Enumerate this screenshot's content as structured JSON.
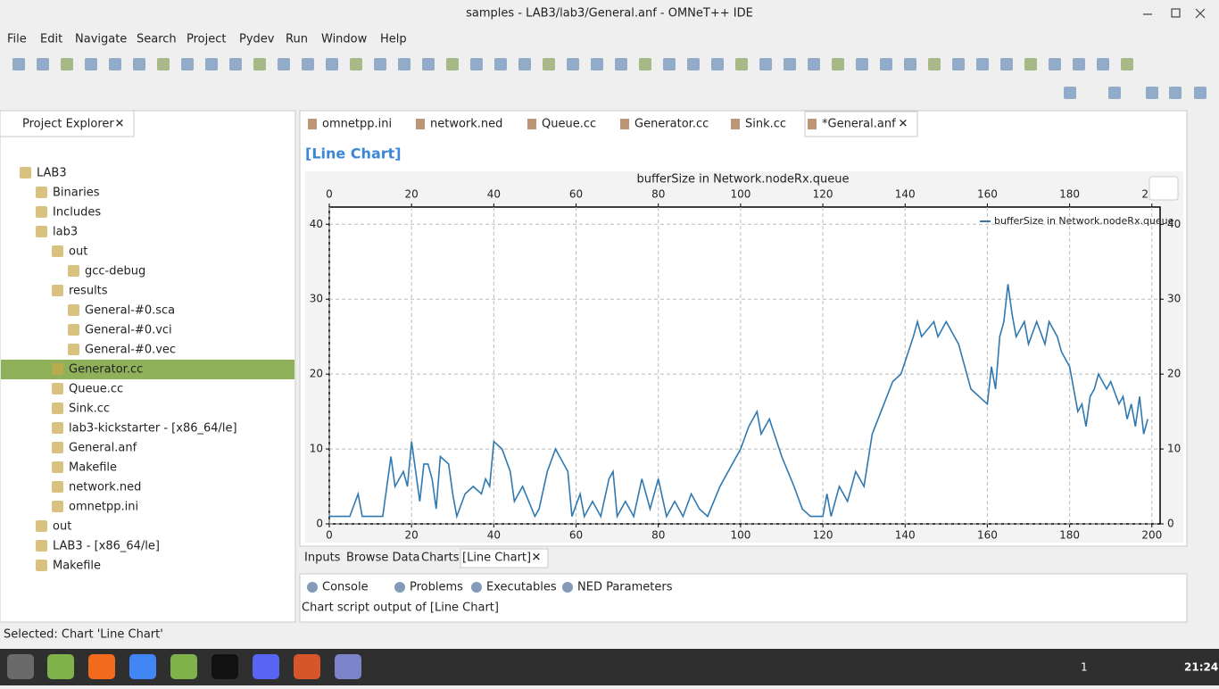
{
  "window": {
    "title": "samples - LAB3/lab3/General.anf - OMNeT++ IDE"
  },
  "menu": [
    "File",
    "Edit",
    "Navigate",
    "Search",
    "Project",
    "Pydev",
    "Run",
    "Window",
    "Help"
  ],
  "project_explorer": {
    "tab": "Project Explorer",
    "tree": [
      "LAB3",
      "Binaries",
      "Includes",
      "lab3",
      "out",
      "gcc-debug",
      "results",
      "General-#0.sca",
      "General-#0.vci",
      "General-#0.vec",
      "Generator.cc",
      "Queue.cc",
      "Sink.cc",
      "lab3-kickstarter - [x86_64/le]",
      "General.anf",
      "Makefile",
      "network.ned",
      "omnetpp.ini",
      "out",
      "LAB3 - [x86_64/le]",
      "Makefile"
    ]
  },
  "editor_tabs": [
    "omnetpp.ini",
    "network.ned",
    "Queue.cc",
    "Generator.cc",
    "Sink.cc",
    "*General.anf"
  ],
  "chart_view_title": "[Line Chart]",
  "chart_data": {
    "type": "line",
    "title": "bufferSize in Network.nodeRx.queue",
    "x": [
      0,
      5,
      7,
      8,
      13,
      15,
      16,
      18,
      19,
      20,
      22,
      23,
      24,
      25,
      26,
      27,
      29,
      30,
      31,
      33,
      35,
      37,
      38,
      39,
      40,
      42,
      44,
      45,
      47,
      50,
      51,
      53,
      55,
      57,
      58,
      59,
      61,
      62,
      64,
      66,
      68,
      69,
      70,
      72,
      74,
      76,
      78,
      80,
      82,
      84,
      86,
      88,
      90,
      92,
      95,
      100,
      102,
      104,
      105,
      107,
      110,
      113,
      115,
      117,
      120,
      121,
      122,
      124,
      126,
      128,
      130,
      132,
      137,
      139,
      142,
      143,
      144,
      147,
      148,
      150,
      153,
      155,
      156,
      158,
      160,
      161,
      162,
      163,
      164,
      165,
      166,
      167,
      169,
      170,
      172,
      174,
      175,
      177,
      178,
      180,
      182,
      183,
      184,
      185,
      186,
      187,
      189,
      190,
      192,
      193,
      194,
      195,
      196,
      197,
      198,
      199
    ],
    "series": [
      {
        "name": "bufferSize in Network.nodeRx.queue",
        "color": "#2f78b0",
        "values": [
          1,
          1,
          4,
          1,
          1,
          9,
          5,
          7,
          5,
          11,
          3,
          8,
          8,
          6,
          2,
          9,
          8,
          4,
          1,
          4,
          5,
          4,
          6,
          5,
          11,
          10,
          7,
          3,
          5,
          1,
          2,
          7,
          10,
          8,
          7,
          1,
          4,
          1,
          3,
          1,
          6,
          7,
          1,
          3,
          1,
          6,
          2,
          6,
          1,
          3,
          1,
          4,
          2,
          1,
          5,
          10,
          13,
          15,
          12,
          14,
          9,
          5,
          2,
          1,
          1,
          4,
          1,
          5,
          3,
          7,
          5,
          12,
          19,
          20,
          25,
          27,
          25,
          27,
          25,
          27,
          24,
          20,
          18,
          17,
          16,
          21,
          18,
          25,
          27,
          32,
          28,
          25,
          27,
          24,
          27,
          24,
          27,
          25,
          23,
          21,
          15,
          16,
          13,
          17,
          18,
          20,
          18,
          19,
          16,
          17,
          14,
          16,
          13,
          17,
          12,
          14
        ]
      }
    ],
    "xlim": [
      0,
      202
    ],
    "ylim": [
      0,
      42.3
    ],
    "xticks": [
      0,
      20,
      40,
      60,
      80,
      100,
      120,
      140,
      160,
      180,
      200
    ],
    "yticks": [
      0,
      10,
      20,
      30,
      40
    ],
    "grid": true,
    "legend": "upper right"
  },
  "bottom_tabs": [
    "Inputs",
    "Browse Data",
    "Charts",
    "[Line Chart]"
  ],
  "console": {
    "tabs": [
      "Console",
      "Problems",
      "Executables",
      "NED Parameters"
    ],
    "output": "Chart script output of [Line Chart]"
  },
  "status": "Selected: Chart 'Line Chart'",
  "taskbar": {
    "badge": "1",
    "clock": "21:24"
  }
}
